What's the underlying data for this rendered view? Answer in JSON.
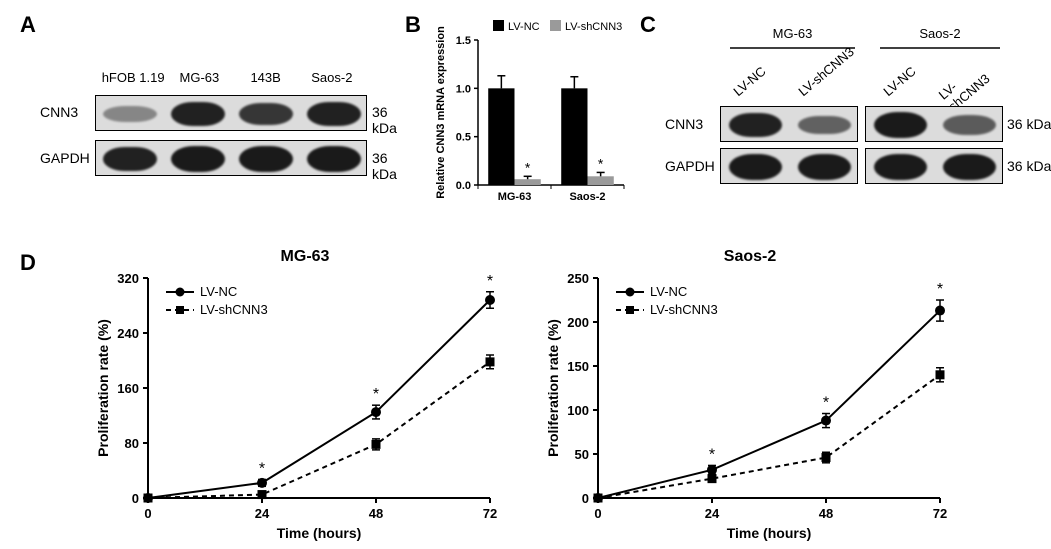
{
  "panel_labels": {
    "A": "A",
    "B": "B",
    "C": "C",
    "D": "D"
  },
  "panelA": {
    "lanes": [
      "hFOB 1.19",
      "MG-63",
      "143B",
      "Saos-2"
    ],
    "rows": [
      {
        "label": "CNN3",
        "kda": "36 kDa",
        "lane_intensity": [
          0.25,
          0.95,
          0.8,
          0.95
        ]
      },
      {
        "label": "GAPDH",
        "kda": "36 kDa",
        "lane_intensity": [
          0.95,
          1.0,
          1.0,
          1.0
        ]
      }
    ],
    "band_color": "#1a1a1a",
    "box_bg": "#d9d9d9",
    "lane_font": 13
  },
  "panelB": {
    "title": "",
    "legend": [
      {
        "label": "LV-NC",
        "color": "#000000"
      },
      {
        "label": "LV-shCNN3",
        "color": "#9a9a9a"
      }
    ],
    "ylabel": "Relative CNN3 mRNA expression",
    "ylim": [
      0,
      1.5
    ],
    "yticks": [
      0.0,
      0.5,
      1.0,
      1.5
    ],
    "groups": [
      "MG-63",
      "Saos-2"
    ],
    "bars": {
      "MG-63": {
        "LV-NC": {
          "v": 1.0,
          "err": 0.13
        },
        "LV-shCNN3": {
          "v": 0.06,
          "err": 0.03,
          "sig": "*"
        }
      },
      "Saos-2": {
        "LV-NC": {
          "v": 1.0,
          "err": 0.12
        },
        "LV-shCNN3": {
          "v": 0.09,
          "err": 0.04,
          "sig": "*"
        }
      }
    },
    "bar_width": 0.36,
    "font": {
      "axis": 12,
      "tick": 12
    }
  },
  "panelC": {
    "group_headers": [
      "MG-63",
      "Saos-2"
    ],
    "lanes": [
      "LV-NC",
      "LV-shCNN3",
      "LV-NC",
      "LV-shCNN3"
    ],
    "rows": [
      {
        "label": "CNN3",
        "kda": "36 kDa",
        "lane_intensity": [
          0.95,
          0.5,
          1.0,
          0.55
        ]
      },
      {
        "label": "GAPDH",
        "kda": "36 kDa",
        "lane_intensity": [
          1.0,
          1.0,
          1.0,
          1.0
        ]
      }
    ],
    "band_color": "#1a1a1a",
    "box_bg": "#d9d9d9"
  },
  "panelD": {
    "charts": [
      {
        "title": "MG-63",
        "ylabel": "Proliferation rate (%)",
        "xlabel": "Time (hours)",
        "xlim": [
          0,
          72
        ],
        "xticks": [
          0,
          24,
          48,
          72
        ],
        "ylim": [
          0,
          320
        ],
        "yticks": [
          0,
          80,
          160,
          240,
          320
        ],
        "series": [
          {
            "name": "LV-NC",
            "marker": "circle",
            "dash": "",
            "color": "#000000",
            "points": [
              {
                "x": 0,
                "y": 0
              },
              {
                "x": 24,
                "y": 22,
                "sig": "*"
              },
              {
                "x": 48,
                "y": 125,
                "sig": "*"
              },
              {
                "x": 72,
                "y": 288,
                "sig": "*"
              }
            ],
            "err": [
              0,
              5,
              10,
              12
            ]
          },
          {
            "name": "LV-shCNN3",
            "marker": "square",
            "dash": "5,4",
            "color": "#000000",
            "points": [
              {
                "x": 0,
                "y": 0
              },
              {
                "x": 24,
                "y": 5
              },
              {
                "x": 48,
                "y": 78
              },
              {
                "x": 72,
                "y": 198
              }
            ],
            "err": [
              0,
              4,
              8,
              10
            ]
          }
        ]
      },
      {
        "title": "Saos-2",
        "ylabel": "Proliferation rate (%)",
        "xlabel": "Time (hours)",
        "xlim": [
          0,
          72
        ],
        "xticks": [
          0,
          24,
          48,
          72
        ],
        "ylim": [
          0,
          250
        ],
        "yticks": [
          0,
          50,
          100,
          150,
          200,
          250
        ],
        "series": [
          {
            "name": "LV-NC",
            "marker": "circle",
            "dash": "",
            "color": "#000000",
            "points": [
              {
                "x": 0,
                "y": 0
              },
              {
                "x": 24,
                "y": 32,
                "sig": "*"
              },
              {
                "x": 48,
                "y": 88,
                "sig": "*"
              },
              {
                "x": 72,
                "y": 213,
                "sig": "*"
              }
            ],
            "err": [
              0,
              5,
              8,
              12
            ]
          },
          {
            "name": "LV-shCNN3",
            "marker": "square",
            "dash": "5,4",
            "color": "#000000",
            "points": [
              {
                "x": 0,
                "y": 0
              },
              {
                "x": 24,
                "y": 22
              },
              {
                "x": 48,
                "y": 46
              },
              {
                "x": 72,
                "y": 140
              }
            ],
            "err": [
              0,
              4,
              6,
              8
            ]
          }
        ]
      }
    ],
    "legend_labels": [
      "LV-NC",
      "LV-shCNN3"
    ]
  },
  "colors": {
    "figure_bg": "#ffffff",
    "axis": "#000000"
  }
}
